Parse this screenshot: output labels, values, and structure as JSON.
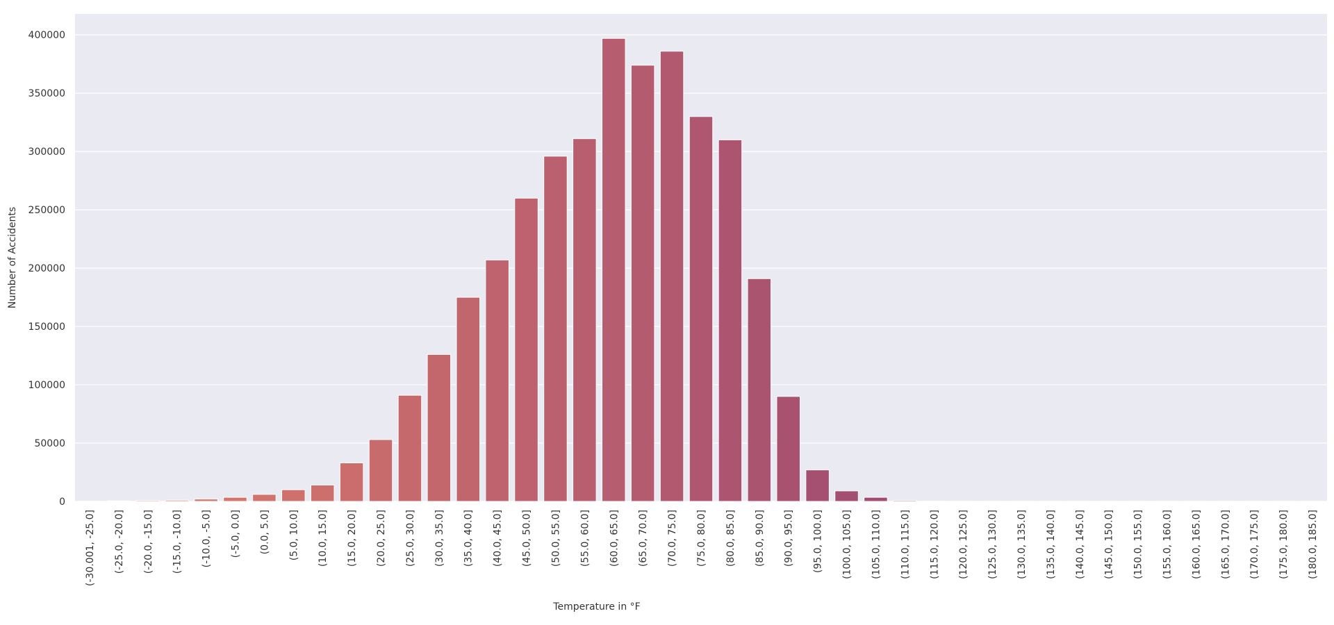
{
  "chart_data": {
    "type": "bar",
    "title": "",
    "xlabel": "Temperature in °F",
    "ylabel": "Number of Accidents",
    "ylim": [
      0,
      418000
    ],
    "yticks": [
      0,
      50000,
      100000,
      150000,
      200000,
      250000,
      300000,
      350000,
      400000
    ],
    "grid": true,
    "categories": [
      "(-30.001, -25.0]",
      "(-25.0, -20.0]",
      "(-20.0, -15.0]",
      "(-15.0, -10.0]",
      "(-10.0, -5.0]",
      "(-5.0, 0.0]",
      "(0.0, 5.0]",
      "(5.0, 10.0]",
      "(10.0, 15.0]",
      "(15.0, 20.0]",
      "(20.0, 25.0]",
      "(25.0, 30.0]",
      "(30.0, 35.0]",
      "(35.0, 40.0]",
      "(40.0, 45.0]",
      "(45.0, 50.0]",
      "(50.0, 55.0]",
      "(55.0, 60.0]",
      "(60.0, 65.0]",
      "(65.0, 70.0]",
      "(70.0, 75.0]",
      "(75.0, 80.0]",
      "(80.0, 85.0]",
      "(85.0, 90.0]",
      "(90.0, 95.0]",
      "(95.0, 100.0]",
      "(100.0, 105.0]",
      "(105.0, 110.0]",
      "(110.0, 115.0]",
      "(115.0, 120.0]",
      "(120.0, 125.0]",
      "(125.0, 130.0]",
      "(130.0, 135.0]",
      "(135.0, 140.0]",
      "(140.0, 145.0]",
      "(145.0, 150.0]",
      "(150.0, 155.0]",
      "(155.0, 160.0]",
      "(160.0, 165.0]",
      "(165.0, 170.0]",
      "(170.0, 175.0]",
      "(175.0, 180.0]",
      "(180.0, 185.0]"
    ],
    "values": [
      200,
      500,
      800,
      1000,
      2000,
      3500,
      6000,
      10000,
      14000,
      33000,
      53000,
      91000,
      126000,
      175000,
      207000,
      260000,
      296000,
      311000,
      397000,
      374000,
      386000,
      330000,
      310000,
      191000,
      90000,
      27000,
      9000,
      3500,
      800,
      200,
      100,
      100,
      100,
      100,
      100,
      100,
      100,
      100,
      100,
      100,
      100,
      100,
      100
    ],
    "colors": {
      "plot_background": "#eaeaf2",
      "grid": "#ffffff",
      "palette_start": "#df7d6a",
      "palette_end": "#9b4772"
    }
  }
}
